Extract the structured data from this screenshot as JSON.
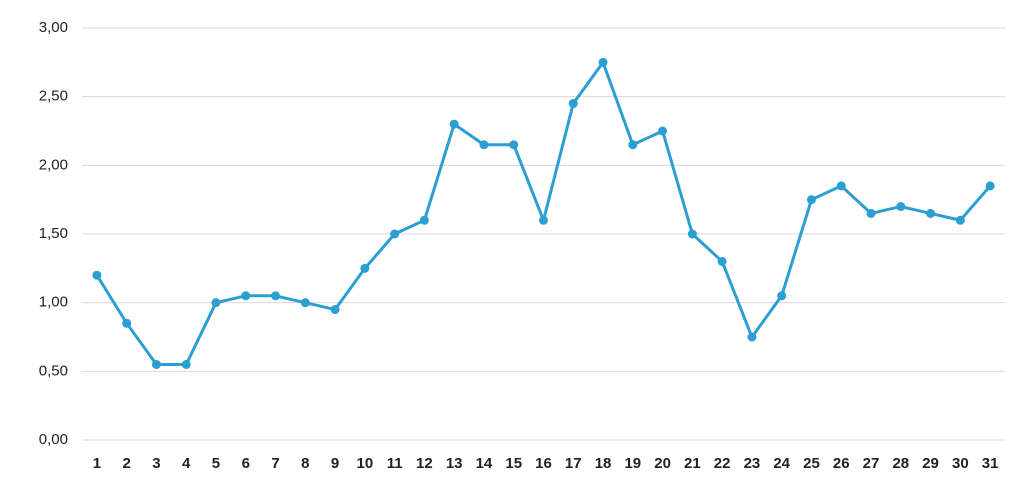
{
  "chart_data": {
    "type": "line",
    "categories": [
      "1",
      "2",
      "3",
      "4",
      "5",
      "6",
      "7",
      "8",
      "9",
      "10",
      "11",
      "12",
      "13",
      "14",
      "15",
      "16",
      "17",
      "18",
      "19",
      "20",
      "21",
      "22",
      "23",
      "24",
      "25",
      "26",
      "27",
      "28",
      "29",
      "30",
      "31"
    ],
    "series": [
      {
        "color": "#2b9fd2",
        "values": [
          1.2,
          0.85,
          0.55,
          0.55,
          1.0,
          1.05,
          1.05,
          1.0,
          0.95,
          1.25,
          1.5,
          1.6,
          2.3,
          2.15,
          2.15,
          1.6,
          2.45,
          2.75,
          2.15,
          2.25,
          1.5,
          1.3,
          0.75,
          1.05,
          1.75,
          1.85,
          1.65,
          1.7,
          1.65,
          1.6,
          1.85
        ]
      }
    ],
    "ylim": [
      0,
      3
    ],
    "yticks": [
      {
        "value": 0,
        "label": "0,00"
      },
      {
        "value": 0.5,
        "label": "0,50"
      },
      {
        "value": 1,
        "label": "1,00"
      },
      {
        "value": 1.5,
        "label": "1,50"
      },
      {
        "value": 2,
        "label": "2,00"
      },
      {
        "value": 2.5,
        "label": "2,50"
      },
      {
        "value": 3,
        "label": "3,00"
      }
    ],
    "grid": true
  }
}
